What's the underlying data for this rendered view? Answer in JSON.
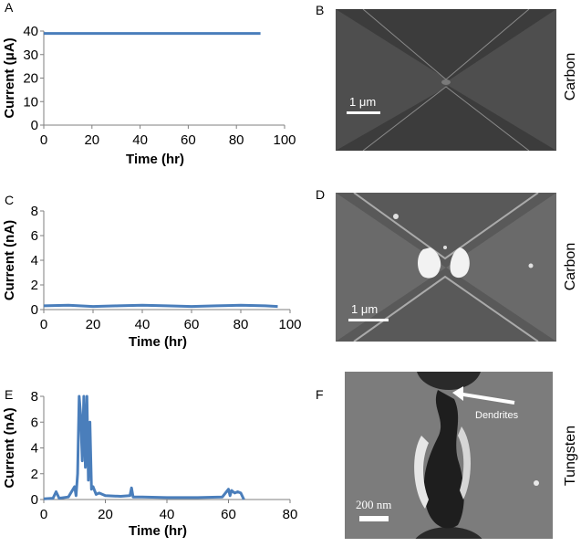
{
  "panels": {
    "a": {
      "letter": "A"
    },
    "b": {
      "letter": "B",
      "material": "Carbon",
      "scale_label": "1 μm"
    },
    "c": {
      "letter": "C"
    },
    "d": {
      "letter": "D",
      "material": "Carbon",
      "scale_label": "1 μm"
    },
    "e": {
      "letter": "E"
    },
    "f": {
      "letter": "F",
      "material": "Tungsten",
      "scale_label": "200 nm",
      "annotation": "Dendrites"
    }
  },
  "colors": {
    "line": "#4a7ebb",
    "axis": "#7f7f7f"
  },
  "chart_data": [
    {
      "id": "A",
      "type": "line",
      "xlabel": "Time (hr)",
      "ylabel": "Current (μA)",
      "xlim": [
        0,
        100
      ],
      "ylim": [
        0,
        40
      ],
      "xticks": [
        0,
        20,
        40,
        60,
        80,
        100
      ],
      "yticks": [
        0,
        10,
        20,
        30,
        40
      ],
      "series": [
        {
          "x": [
            0,
            15,
            30,
            45,
            60,
            75,
            90
          ],
          "y": [
            39,
            39,
            39,
            39,
            39,
            39,
            39
          ]
        }
      ]
    },
    {
      "id": "C",
      "type": "line",
      "xlabel": "Time (hr)",
      "ylabel": "Current (nA)",
      "xlim": [
        0,
        100
      ],
      "ylim": [
        0,
        8
      ],
      "xticks": [
        0,
        20,
        40,
        60,
        80,
        100
      ],
      "yticks": [
        0,
        2,
        4,
        6,
        8
      ],
      "series": [
        {
          "x": [
            0,
            10,
            20,
            30,
            40,
            50,
            60,
            70,
            80,
            90,
            95
          ],
          "y": [
            0.3,
            0.35,
            0.25,
            0.3,
            0.35,
            0.3,
            0.25,
            0.3,
            0.35,
            0.3,
            0.25
          ]
        }
      ]
    },
    {
      "id": "E",
      "type": "line",
      "xlabel": "Time (hr)",
      "ylabel": "Current (nA)",
      "xlim": [
        0,
        80
      ],
      "ylim": [
        0,
        8
      ],
      "xticks": [
        0,
        20,
        40,
        60,
        80
      ],
      "yticks": [
        0,
        2,
        4,
        6,
        8
      ],
      "series": [
        {
          "x": [
            0,
            3,
            4,
            5,
            8,
            10,
            10.5,
            11,
            11.5,
            12,
            12.5,
            13,
            13.5,
            14,
            14.5,
            15,
            15.5,
            16,
            17,
            18,
            20,
            25,
            28,
            28.5,
            29,
            32,
            40,
            50,
            58,
            60,
            60.5,
            61,
            62,
            63,
            64,
            65
          ],
          "y": [
            0.05,
            0.1,
            0.6,
            0.1,
            0.2,
            1.0,
            0.3,
            2.0,
            8.0,
            6.5,
            3.0,
            8.0,
            2.5,
            8.0,
            1.5,
            6.0,
            0.8,
            1.0,
            0.4,
            0.5,
            0.3,
            0.25,
            0.3,
            0.9,
            0.2,
            0.2,
            0.15,
            0.15,
            0.2,
            0.8,
            0.3,
            0.7,
            0.5,
            0.6,
            0.5,
            0.0
          ]
        }
      ]
    }
  ]
}
